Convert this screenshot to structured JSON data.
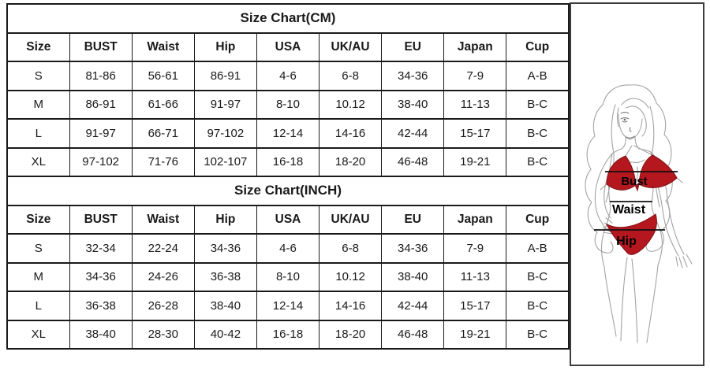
{
  "page": {
    "background": "#ffffff",
    "table_border_color": "#1a1a1a"
  },
  "tables": [
    {
      "title": "Size Chart(CM)",
      "columns": [
        "Size",
        "BUST",
        "Waist",
        "Hip",
        "USA",
        "UK/AU",
        "EU",
        "Japan",
        "Cup"
      ],
      "rows": [
        [
          "S",
          "81-86",
          "56-61",
          "86-91",
          "4-6",
          "6-8",
          "34-36",
          "7-9",
          "A-B"
        ],
        [
          "M",
          "86-91",
          "61-66",
          "91-97",
          "8-10",
          "10.12",
          "38-40",
          "11-13",
          "B-C"
        ],
        [
          "L",
          "91-97",
          "66-71",
          "97-102",
          "12-14",
          "14-16",
          "42-44",
          "15-17",
          "B-C"
        ],
        [
          "XL",
          "97-102",
          "71-76",
          "102-107",
          "16-18",
          "18-20",
          "46-48",
          "19-21",
          "B-C"
        ]
      ]
    },
    {
      "title": "Size Chart(INCH)",
      "columns": [
        "Size",
        "BUST",
        "Waist",
        "Hip",
        "USA",
        "UK/AU",
        "EU",
        "Japan",
        "Cup"
      ],
      "rows": [
        [
          "S",
          "32-34",
          "22-24",
          "34-36",
          "4-6",
          "6-8",
          "34-36",
          "7-9",
          "A-B"
        ],
        [
          "M",
          "34-36",
          "24-26",
          "36-38",
          "8-10",
          "10.12",
          "38-40",
          "11-13",
          "B-C"
        ],
        [
          "L",
          "36-38",
          "26-28",
          "38-40",
          "12-14",
          "14-16",
          "42-44",
          "15-17",
          "B-C"
        ],
        [
          "XL",
          "38-40",
          "28-30",
          "40-42",
          "16-18",
          "18-20",
          "46-48",
          "19-21",
          "B-C"
        ]
      ]
    }
  ],
  "figure": {
    "labels": {
      "bust": "Bust",
      "waist": "Waist",
      "hip": "Hip"
    },
    "colors": {
      "bikini_red": "#b5171e",
      "body_outline": "#9e9e9e",
      "measure_line": "#111111"
    }
  }
}
